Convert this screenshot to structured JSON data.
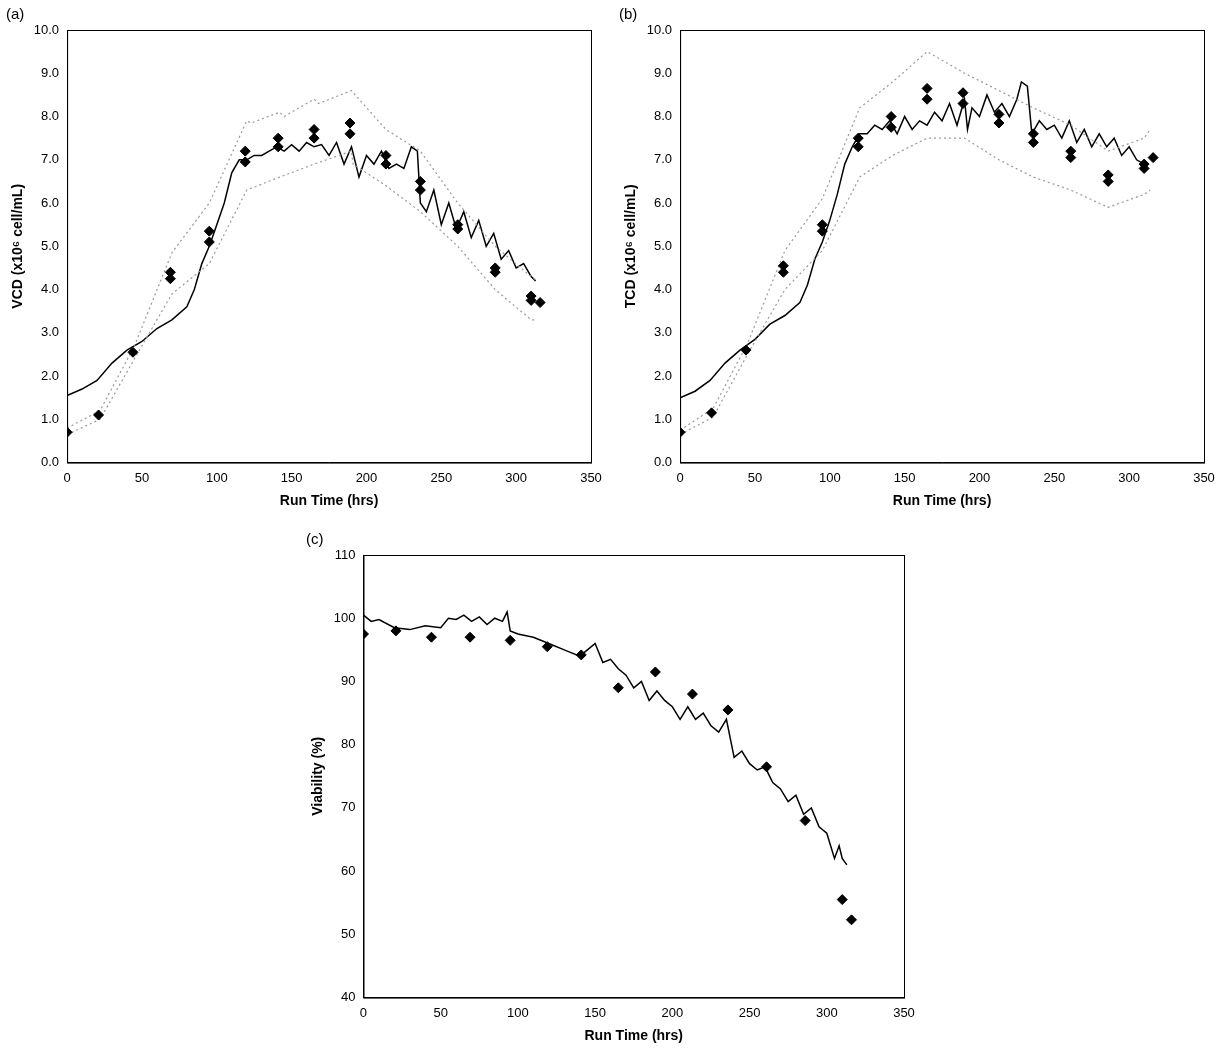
{
  "chart_data": [
    {
      "type": "line",
      "title": "(a)",
      "xlabel": "Run Time (hrs)",
      "ylabel": "VCD (x10⁶ cell/mL)",
      "xlim": [
        0,
        350
      ],
      "xticks": [
        0,
        50,
        100,
        150,
        200,
        250,
        300,
        350
      ],
      "ylim": [
        0,
        10
      ],
      "yticks": [
        {
          "value": 0,
          "label": "0.0"
        },
        {
          "value": 1,
          "label": "1.0"
        },
        {
          "value": 2,
          "label": "2.0"
        },
        {
          "value": 3,
          "label": "3.0"
        },
        {
          "value": 4,
          "label": "4.0"
        },
        {
          "value": 5,
          "label": "5.0"
        },
        {
          "value": 6,
          "label": "6.0"
        },
        {
          "value": 7,
          "label": "7.0"
        },
        {
          "value": 8,
          "label": "8.0"
        },
        {
          "value": 9,
          "label": "9.0"
        },
        {
          "value": 10,
          "label": "10.0"
        }
      ],
      "grid": false,
      "series": [
        {
          "type": "line",
          "color": "#999999",
          "line_style": "dotted",
          "x": [
            0,
            22,
            45,
            70,
            95,
            120,
            123,
            142,
            145,
            165,
            168,
            190,
            213,
            236,
            261,
            286,
            310,
            314
          ],
          "values": [
            0.8,
            1.2,
            2.7,
            4.85,
            6.0,
            7.9,
            7.85,
            8.1,
            8.0,
            8.4,
            8.3,
            8.6,
            7.7,
            7.2,
            6.0,
            5.0,
            4.3,
            4.2
          ]
        },
        {
          "type": "line",
          "color": "#999999",
          "line_style": "dotted",
          "x": [
            0,
            22,
            45,
            70,
            95,
            120,
            142,
            165,
            190,
            191,
            213,
            236,
            261,
            286,
            310,
            314
          ],
          "values": [
            0.65,
            1.0,
            2.4,
            3.9,
            4.6,
            6.3,
            6.6,
            6.9,
            7.2,
            6.9,
            6.4,
            5.8,
            5.0,
            4.0,
            3.3,
            3.3
          ]
        },
        {
          "type": "line",
          "color": "#000000",
          "line_style": "solid",
          "x": [
            0,
            10,
            20,
            30,
            40,
            50,
            60,
            70,
            80,
            85,
            90,
            95,
            100,
            105,
            110,
            115,
            120,
            125,
            130,
            135,
            140,
            145,
            150,
            155,
            160,
            165,
            170,
            175,
            180,
            185,
            190,
            195,
            200,
            205,
            210,
            215,
            220,
            225,
            230,
            234,
            236,
            240,
            245,
            250,
            255,
            260,
            265,
            270,
            275,
            280,
            285,
            290,
            295,
            300,
            305,
            310,
            313
          ],
          "values": [
            1.55,
            1.7,
            1.9,
            2.3,
            2.6,
            2.8,
            3.1,
            3.3,
            3.6,
            4.0,
            4.6,
            5.0,
            5.5,
            6.0,
            6.7,
            7.0,
            7.0,
            7.1,
            7.1,
            7.2,
            7.3,
            7.2,
            7.35,
            7.2,
            7.4,
            7.3,
            7.35,
            7.1,
            7.4,
            6.9,
            7.3,
            6.6,
            7.1,
            6.9,
            7.2,
            6.8,
            6.9,
            6.8,
            7.3,
            7.2,
            6.0,
            5.8,
            6.3,
            5.5,
            6.0,
            5.4,
            5.8,
            5.2,
            5.6,
            5.0,
            5.3,
            4.7,
            4.9,
            4.5,
            4.6,
            4.3,
            4.2
          ]
        },
        {
          "type": "scatter",
          "color": "#000000",
          "marker": "diamond",
          "x": [
            0,
            21,
            44,
            69,
            69,
            95,
            95,
            119,
            119,
            141,
            141,
            165,
            165,
            189,
            189,
            213,
            213,
            236,
            236,
            261,
            261,
            286,
            286,
            310,
            310,
            316
          ],
          "values": [
            0.7,
            1.1,
            2.55,
            4.4,
            4.25,
            5.35,
            5.1,
            7.2,
            6.95,
            7.5,
            7.3,
            7.7,
            7.5,
            7.85,
            7.6,
            7.1,
            6.9,
            6.5,
            6.3,
            5.5,
            5.4,
            4.5,
            4.4,
            3.85,
            3.75,
            3.7
          ]
        }
      ]
    },
    {
      "type": "line",
      "title": "(b)",
      "xlabel": "Run Time (hrs)",
      "ylabel": "TCD (x10⁶ cell/mL)",
      "xlim": [
        0,
        350
      ],
      "xticks": [
        0,
        50,
        100,
        150,
        200,
        250,
        300,
        350
      ],
      "ylim": [
        0,
        10
      ],
      "yticks": [
        {
          "value": 0,
          "label": "0.0"
        },
        {
          "value": 1,
          "label": "1.0"
        },
        {
          "value": 2,
          "label": "2.0"
        },
        {
          "value": 3,
          "label": "3.0"
        },
        {
          "value": 4,
          "label": "4.0"
        },
        {
          "value": 5,
          "label": "5.0"
        },
        {
          "value": 6,
          "label": "6.0"
        },
        {
          "value": 7,
          "label": "7.0"
        },
        {
          "value": 8,
          "label": "8.0"
        },
        {
          "value": 9,
          "label": "9.0"
        },
        {
          "value": 10,
          "label": "10.0"
        }
      ],
      "grid": false,
      "series": [
        {
          "type": "line",
          "color": "#999999",
          "line_style": "dotted",
          "x": [
            0,
            22,
            45,
            70,
            95,
            120,
            142,
            165,
            190,
            213,
            236,
            261,
            286,
            310,
            314
          ],
          "values": [
            0.75,
            1.25,
            2.75,
            4.9,
            6.1,
            8.2,
            8.8,
            9.5,
            9.0,
            8.6,
            8.2,
            7.8,
            7.2,
            7.5,
            7.7
          ]
        },
        {
          "type": "line",
          "color": "#999999",
          "line_style": "dotted",
          "x": [
            0,
            22,
            45,
            70,
            95,
            120,
            142,
            165,
            190,
            213,
            236,
            261,
            286,
            310,
            314
          ],
          "values": [
            0.65,
            1.05,
            2.5,
            4.0,
            4.9,
            6.6,
            7.1,
            7.5,
            7.5,
            7.0,
            6.6,
            6.3,
            5.9,
            6.2,
            6.3
          ]
        },
        {
          "type": "line",
          "color": "#000000",
          "line_style": "solid",
          "x": [
            0,
            10,
            20,
            30,
            40,
            50,
            60,
            70,
            80,
            85,
            90,
            95,
            100,
            105,
            110,
            115,
            120,
            125,
            130,
            135,
            140,
            145,
            150,
            155,
            160,
            165,
            170,
            175,
            180,
            185,
            190,
            192,
            195,
            200,
            205,
            210,
            215,
            220,
            225,
            228,
            232,
            235,
            240,
            245,
            250,
            255,
            260,
            265,
            270,
            275,
            280,
            285,
            290,
            295,
            300,
            305,
            310,
            313
          ],
          "values": [
            1.5,
            1.65,
            1.9,
            2.3,
            2.6,
            2.85,
            3.2,
            3.4,
            3.7,
            4.1,
            4.7,
            5.1,
            5.6,
            6.2,
            6.9,
            7.3,
            7.6,
            7.6,
            7.8,
            7.7,
            7.9,
            7.6,
            8.0,
            7.7,
            7.9,
            7.8,
            8.1,
            7.9,
            8.3,
            7.8,
            8.4,
            7.7,
            8.2,
            8.0,
            8.5,
            8.1,
            8.3,
            8.0,
            8.4,
            8.8,
            8.7,
            7.6,
            7.9,
            7.7,
            7.8,
            7.5,
            7.9,
            7.4,
            7.7,
            7.3,
            7.6,
            7.3,
            7.5,
            7.1,
            7.3,
            7.0,
            6.9,
            6.9
          ]
        },
        {
          "type": "scatter",
          "color": "#000000",
          "marker": "diamond",
          "x": [
            0,
            21,
            44,
            69,
            69,
            95,
            95,
            119,
            119,
            141,
            141,
            165,
            165,
            189,
            189,
            213,
            213,
            236,
            236,
            261,
            261,
            286,
            286,
            310,
            310,
            316
          ],
          "values": [
            0.7,
            1.15,
            2.6,
            4.55,
            4.4,
            5.5,
            5.35,
            7.5,
            7.3,
            8.0,
            7.75,
            8.65,
            8.4,
            8.55,
            8.3,
            8.05,
            7.85,
            7.6,
            7.4,
            7.2,
            7.05,
            6.65,
            6.5,
            6.9,
            6.8,
            7.05
          ]
        }
      ]
    },
    {
      "type": "line",
      "title": "(c)",
      "xlabel": "Run Time (hrs)",
      "ylabel": "Viability (%)",
      "xlim": [
        0,
        350
      ],
      "xticks": [
        0,
        50,
        100,
        150,
        200,
        250,
        300,
        350
      ],
      "ylim": [
        40,
        110
      ],
      "yticks": [
        40,
        50,
        60,
        70,
        80,
        90,
        100,
        110
      ],
      "grid": false,
      "series": [
        {
          "type": "line",
          "color": "#000000",
          "line_style": "solid",
          "x": [
            0,
            5,
            10,
            20,
            30,
            40,
            50,
            55,
            60,
            65,
            70,
            75,
            80,
            85,
            90,
            93,
            95,
            100,
            110,
            120,
            130,
            140,
            145,
            150,
            155,
            160,
            165,
            170,
            175,
            180,
            185,
            190,
            195,
            200,
            205,
            210,
            215,
            220,
            225,
            230,
            235,
            240,
            245,
            250,
            255,
            260,
            265,
            270,
            275,
            280,
            285,
            290,
            295,
            300,
            305,
            308,
            310,
            313
          ],
          "values": [
            100.5,
            99.5,
            99.8,
            98.5,
            98.2,
            98.8,
            98.5,
            100,
            99.8,
            100.5,
            99.5,
            100.2,
            99,
            100,
            99.5,
            101,
            98,
            97.5,
            97,
            96,
            95,
            94,
            95,
            96,
            93,
            93.5,
            92,
            91,
            89,
            90,
            87,
            88.5,
            87,
            86,
            84,
            86,
            84,
            85,
            83,
            82,
            84,
            78,
            79,
            77,
            76,
            76.5,
            74,
            73,
            71,
            72,
            69,
            70,
            67,
            66,
            62,
            64,
            62,
            61
          ]
        },
        {
          "type": "scatter",
          "color": "#000000",
          "marker": "diamond",
          "x": [
            0,
            21,
            44,
            69,
            95,
            119,
            141,
            165,
            189,
            213,
            236,
            261,
            286,
            310,
            316
          ],
          "values": [
            97.5,
            98,
            97,
            97,
            96.5,
            95.5,
            94.2,
            89,
            91.5,
            88,
            85.5,
            76.5,
            68,
            55.5,
            52.3
          ]
        }
      ]
    }
  ]
}
